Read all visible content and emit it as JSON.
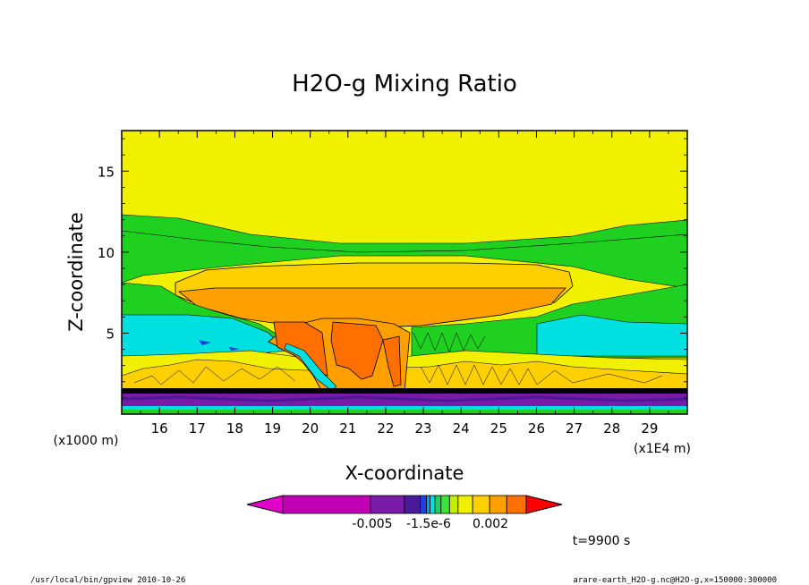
{
  "chart_data": {
    "type": "heatmap",
    "title": "H2O-g Mixing Ratio",
    "xlabel": "X-coordinate",
    "ylabel": "Z-coordinate",
    "x_unit": "(x1E4 m)",
    "y_unit": "(x1000 m)",
    "xlim": [
      15.0,
      30.0
    ],
    "ylim": [
      0.0,
      17.5
    ],
    "x_ticks": [
      16,
      17,
      18,
      19,
      20,
      21,
      22,
      23,
      24,
      25,
      26,
      27,
      28,
      29
    ],
    "y_ticks": [
      5,
      10,
      15
    ],
    "x_tick_labels": [
      "16",
      "17",
      "18",
      "19",
      "20",
      "21",
      "22",
      "23",
      "24",
      "25",
      "26",
      "27",
      "28",
      "29"
    ],
    "y_tick_labels": [
      "5",
      "10",
      "15"
    ],
    "colorbar": {
      "colors": [
        "#e000c8",
        "#c000b4",
        "#7a1aa8",
        "#4a1a98",
        "#2040e0",
        "#00a0ff",
        "#00e0e0",
        "#20d060",
        "#40e040",
        "#c0f000",
        "#f0f000",
        "#ffd000",
        "#ffa000",
        "#ff7000",
        "#ff0000"
      ],
      "tick_labels": [
        "-0.005",
        "-1.5e-6",
        "0.002"
      ]
    },
    "layers": [
      {
        "name": "background",
        "color": "#f0f000"
      },
      {
        "name": "upper-green-band",
        "color": "#20d020",
        "z_range": [
          9.3,
          12.5
        ]
      },
      {
        "name": "anvil-yellow",
        "color": "#ffd000",
        "z_range": [
          6.5,
          9.5
        ]
      },
      {
        "name": "anvil-orange",
        "color": "#ffa000",
        "z_range": [
          1.5,
          8.0
        ]
      },
      {
        "name": "core-red-orange",
        "color": "#ff7000",
        "x_range": [
          19.0,
          23.0
        ],
        "z_range": [
          1.5,
          5.6
        ]
      },
      {
        "name": "mid-green",
        "color": "#20d020",
        "z_range": [
          2.5,
          8.5
        ]
      },
      {
        "name": "cyan-layer",
        "color": "#00e0ff",
        "z_range": [
          3.0,
          6.0
        ]
      },
      {
        "name": "surface-purple",
        "color": "#6a1aa8",
        "z_range": [
          0.0,
          1.5
        ]
      }
    ]
  },
  "annotations": {
    "time": "t=9900 s",
    "program": "/usr/local/bin/gpview  2010-10-26",
    "source": "arare-earth_H2O-g.nc@H2O-g,x=150000:300000"
  }
}
